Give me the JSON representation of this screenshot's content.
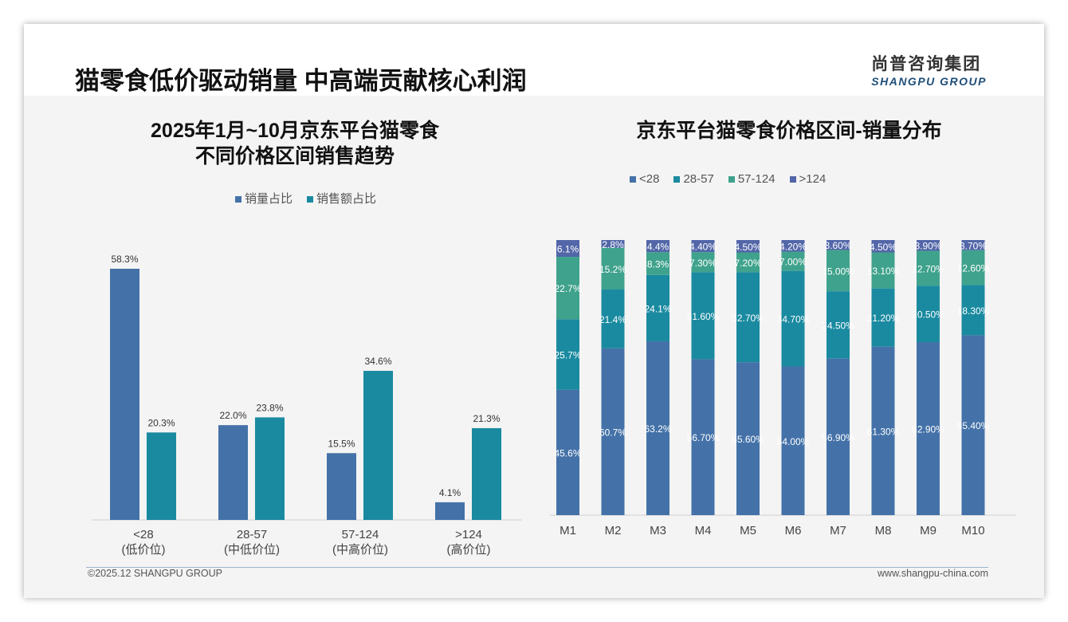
{
  "header": {
    "title": "猫零食低价驱动销量 中高端贡献核心利润",
    "logo_cn": "尚普咨询集团",
    "logo_en": "SHANGPU GROUP"
  },
  "footer": {
    "copyright": "©2025.12 SHANGPU GROUP",
    "website": "www.shangpu-china.com"
  },
  "colors": {
    "blue": "#4472a8",
    "teal": "#1a8aa0",
    "green": "#3fa28c",
    "purple": "#5266a8"
  },
  "chart_data": [
    {
      "type": "bar",
      "title": "2025年1月~10月京东平台猫零食 不同价格区间销售趋势",
      "title_lines": [
        "2025年1月~10月京东平台猫零食",
        "不同价格区间销售趋势"
      ],
      "categories": [
        "<28",
        "28-57",
        "57-124",
        ">124"
      ],
      "category_sub": [
        "(低价位)",
        "(中低价位)",
        "(中高价位)",
        "(高价位)"
      ],
      "series": [
        {
          "name": "销量占比",
          "values": [
            58.3,
            22.0,
            15.5,
            4.1
          ],
          "labels": [
            "58.3%",
            "22.0%",
            "15.5%",
            "4.1%"
          ]
        },
        {
          "name": "销售额占比",
          "values": [
            20.3,
            23.8,
            34.6,
            21.3
          ],
          "labels": [
            "20.3%",
            "23.8%",
            "34.6%",
            "21.3%"
          ]
        }
      ],
      "ylim": [
        0,
        60
      ],
      "unit": "%",
      "legend": "top"
    },
    {
      "type": "stacked_bar",
      "title": "京东平台猫零食价格区间-销量分布",
      "categories": [
        "M1",
        "M2",
        "M3",
        "M4",
        "M5",
        "M6",
        "M7",
        "M8",
        "M9",
        "M10"
      ],
      "series": [
        {
          "name": "<28",
          "values": [
            45.6,
            60.7,
            63.2,
            56.7,
            55.6,
            54.0,
            56.9,
            61.3,
            62.9,
            65.4
          ],
          "labels": [
            "45.6%",
            "60.7%",
            "63.2%",
            "56.70%",
            "55.60%",
            "54.00%",
            "56.90%",
            "61.30%",
            "62.90%",
            "65.40%"
          ]
        },
        {
          "name": "28-57",
          "values": [
            25.7,
            21.4,
            24.1,
            31.6,
            32.7,
            34.7,
            24.5,
            21.2,
            20.5,
            18.3
          ],
          "labels": [
            "25.7%",
            "21.4%",
            "24.1%",
            "31.60%",
            "32.70%",
            "34.70%",
            "24.50%",
            "21.20%",
            "20.50%",
            "18.30%"
          ]
        },
        {
          "name": "57-124",
          "values": [
            22.7,
            15.2,
            8.3,
            7.3,
            7.2,
            7.0,
            15.0,
            13.1,
            12.7,
            12.6
          ],
          "labels": [
            "22.7%",
            "15.2%",
            "8.3%",
            "7.30%",
            "7.20%",
            "7.00%",
            "15.00%",
            "13.10%",
            "12.70%",
            "12.60%"
          ]
        },
        {
          "name": ">124",
          "values": [
            6.1,
            2.8,
            4.4,
            4.4,
            4.5,
            4.2,
            3.6,
            4.5,
            3.9,
            3.7
          ],
          "labels": [
            "6.1%",
            "2.8%",
            "4.4%",
            "4.40%",
            "4.50%",
            "4.20%",
            "3.60%",
            "4.50%",
            "3.90%",
            "3.70%"
          ]
        }
      ],
      "ylim": [
        0,
        100
      ],
      "legend": "top"
    }
  ]
}
